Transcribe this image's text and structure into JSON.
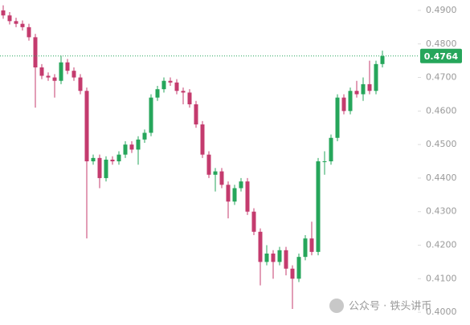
{
  "chart_data": {
    "type": "candlestick",
    "open": [
      0.49,
      0.4885,
      0.4868,
      0.486,
      0.485,
      0.482,
      0.473,
      0.4705,
      0.47,
      0.469,
      0.4745,
      0.472,
      0.47,
      0.466,
      0.445,
      0.446,
      0.44,
      0.4455,
      0.445,
      0.447,
      0.45,
      0.4485,
      0.4515,
      0.4535,
      0.464,
      0.4665,
      0.469,
      0.4685,
      0.466,
      0.4655,
      0.462,
      0.456,
      0.447,
      0.441,
      0.442,
      0.438,
      0.433,
      0.437,
      0.439,
      0.43,
      0.424,
      0.415,
      0.4175,
      0.415,
      0.4185,
      0.413,
      0.41,
      0.4165,
      0.422,
      0.418,
      0.445,
      0.445,
      0.452,
      0.464,
      0.46,
      0.466,
      0.465,
      0.468,
      0.466,
      0.474
    ],
    "high": [
      0.4915,
      0.4895,
      0.4878,
      0.487,
      0.486,
      0.483,
      0.474,
      0.4715,
      0.471,
      0.4765,
      0.4755,
      0.473,
      0.471,
      0.467,
      0.447,
      0.447,
      0.4465,
      0.4465,
      0.448,
      0.451,
      0.451,
      0.4525,
      0.4545,
      0.465,
      0.4675,
      0.47,
      0.47,
      0.4695,
      0.467,
      0.4665,
      0.463,
      0.457,
      0.448,
      0.443,
      0.443,
      0.439,
      0.438,
      0.44,
      0.44,
      0.431,
      0.425,
      0.42,
      0.4185,
      0.4195,
      0.4195,
      0.414,
      0.4175,
      0.423,
      0.427,
      0.446,
      0.448,
      0.453,
      0.465,
      0.465,
      0.467,
      0.469,
      0.47,
      0.475,
      0.475,
      0.478
    ],
    "low": [
      0.4875,
      0.4858,
      0.485,
      0.484,
      0.481,
      0.461,
      0.4695,
      0.469,
      0.464,
      0.468,
      0.471,
      0.469,
      0.465,
      0.422,
      0.444,
      0.437,
      0.439,
      0.444,
      0.444,
      0.446,
      0.4475,
      0.444,
      0.4505,
      0.4525,
      0.463,
      0.4655,
      0.4675,
      0.465,
      0.462,
      0.461,
      0.455,
      0.446,
      0.44,
      0.436,
      0.437,
      0.428,
      0.432,
      0.436,
      0.429,
      0.423,
      0.408,
      0.414,
      0.41,
      0.414,
      0.411,
      0.401,
      0.409,
      0.4155,
      0.417,
      0.417,
      0.441,
      0.444,
      0.451,
      0.459,
      0.459,
      0.464,
      0.463,
      0.465,
      0.465,
      0.473
    ],
    "close": [
      0.4885,
      0.4868,
      0.486,
      0.485,
      0.482,
      0.473,
      0.4705,
      0.47,
      0.469,
      0.4745,
      0.472,
      0.47,
      0.466,
      0.445,
      0.446,
      0.44,
      0.4455,
      0.445,
      0.447,
      0.45,
      0.4485,
      0.4515,
      0.4535,
      0.464,
      0.4665,
      0.469,
      0.4685,
      0.466,
      0.4655,
      0.462,
      0.456,
      0.447,
      0.441,
      0.442,
      0.438,
      0.433,
      0.437,
      0.439,
      0.43,
      0.424,
      0.415,
      0.4175,
      0.415,
      0.4185,
      0.413,
      0.41,
      0.4165,
      0.422,
      0.418,
      0.445,
      0.445,
      0.452,
      0.464,
      0.46,
      0.466,
      0.465,
      0.468,
      0.466,
      0.474,
      0.4764
    ],
    "up_color": "#26a65b",
    "down_color": "#c43b6e",
    "ylim": [
      0.3962,
      0.4931
    ],
    "yticks": [
      {
        "value": 0.49,
        "label": "0.4900"
      },
      {
        "value": 0.48,
        "label": "0.4800"
      },
      {
        "value": 0.47,
        "label": "0.4700"
      },
      {
        "value": 0.46,
        "label": "0.4600"
      },
      {
        "value": 0.45,
        "label": "0.4500"
      },
      {
        "value": 0.44,
        "label": "0.4400"
      },
      {
        "value": 0.43,
        "label": "0.4300"
      },
      {
        "value": 0.42,
        "label": "0.4200"
      },
      {
        "value": 0.41,
        "label": "0.4100"
      },
      {
        "value": 0.4,
        "label": "0.4000"
      }
    ],
    "last_price": {
      "value": 0.4764,
      "label": "0.4764"
    }
  },
  "watermark": "公众号 · 铁头讲币"
}
